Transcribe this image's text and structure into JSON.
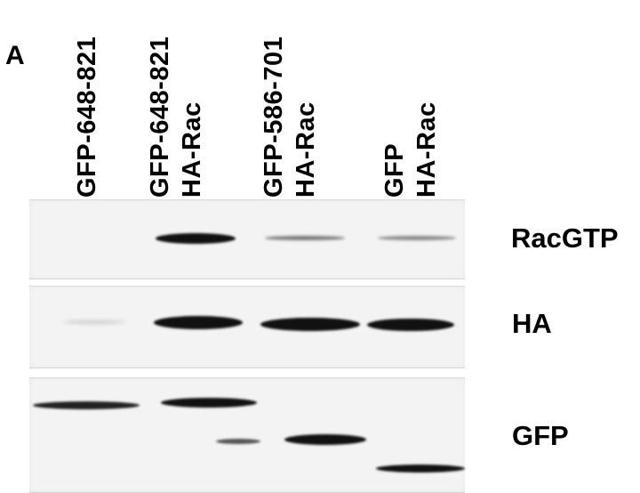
{
  "figure": {
    "panel_letter": "A",
    "lanes": [
      {
        "line1": "GFP-648-821",
        "line2": ""
      },
      {
        "line1": "GFP-648-821",
        "line2": "HA-Rac"
      },
      {
        "line1": "GFP-586-701",
        "line2": "HA-Rac"
      },
      {
        "line1": "GFP",
        "line2": "HA-Rac"
      }
    ],
    "rows": [
      {
        "label": "RacGTP"
      },
      {
        "label": "HA"
      },
      {
        "label": "GFP"
      }
    ]
  }
}
